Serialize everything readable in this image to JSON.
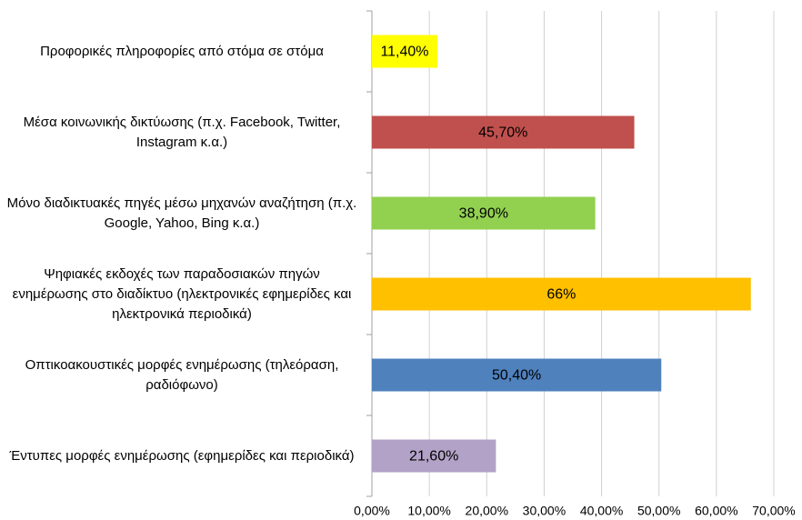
{
  "chart_data": {
    "type": "bar",
    "orientation": "horizontal",
    "categories": [
      "Προφορικές πληροφορίες από στόμα σε στόμα",
      "Μέσα κοινωνικής δικτύωσης (π.χ. Facebook, Twitter, Instagram κ.α.)",
      "Μόνο διαδικτυακές πηγές μέσω μηχανών αναζήτηση (π.χ. Google, Yahoo, Bing κ.α.)",
      "Ψηφιακές εκδοχές των παραδοσιακών πηγών ενημέρωσης στο  διαδίκτυο (ηλεκτρονικές εφημερίδες και ηλεκτρονικά περιοδικά)",
      "Οπτικοακουστικές μορφές ενημέρωσης (τηλεόραση, ραδιόφωνο)",
      "Έντυπες μορφές ενημέρωσης (εφημερίδες και περιοδικά)"
    ],
    "values": [
      11.4,
      45.7,
      38.9,
      66,
      50.4,
      21.6
    ],
    "value_labels": [
      "11,40%",
      "45,70%",
      "38,90%",
      "66%",
      "50,40%",
      "21,60%"
    ],
    "colors": [
      "#ffff00",
      "#c0504d",
      "#92d050",
      "#ffc000",
      "#4f81bd",
      "#b3a2c7"
    ],
    "xlim": [
      0,
      70
    ],
    "xticks": [
      {
        "value": 0,
        "label": "0,00%"
      },
      {
        "value": 10,
        "label": "10,00%"
      },
      {
        "value": 20,
        "label": "20,00%"
      },
      {
        "value": 30,
        "label": "30,00%"
      },
      {
        "value": 40,
        "label": "40,00%"
      },
      {
        "value": 50,
        "label": "50,00%"
      },
      {
        "value": 60,
        "label": "60,00%"
      },
      {
        "value": 70,
        "label": "70,00%"
      }
    ],
    "grid": true
  }
}
